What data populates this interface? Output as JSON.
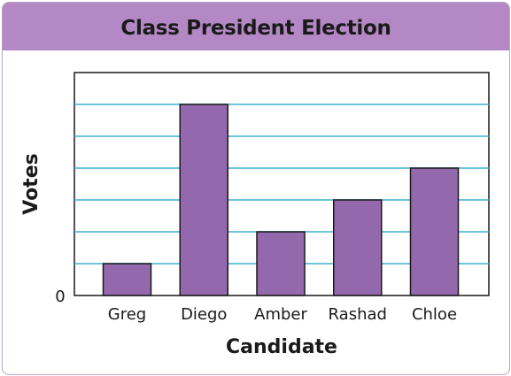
{
  "chart_data": {
    "type": "bar",
    "title": "Class President Election",
    "xlabel": "Candidate",
    "ylabel": "Votes",
    "categories": [
      "Greg",
      "Diego",
      "Amber",
      "Rashad",
      "Chloe"
    ],
    "values": [
      1,
      6,
      2,
      3,
      4
    ],
    "ylim": [
      0,
      7
    ],
    "y_tick_labels": [
      "0"
    ],
    "grid": true,
    "colors": {
      "bar": "#9468ad",
      "bar_border": "#1a1a1a",
      "grid": "#3fb3cf",
      "title_band": "#b388c4"
    }
  }
}
